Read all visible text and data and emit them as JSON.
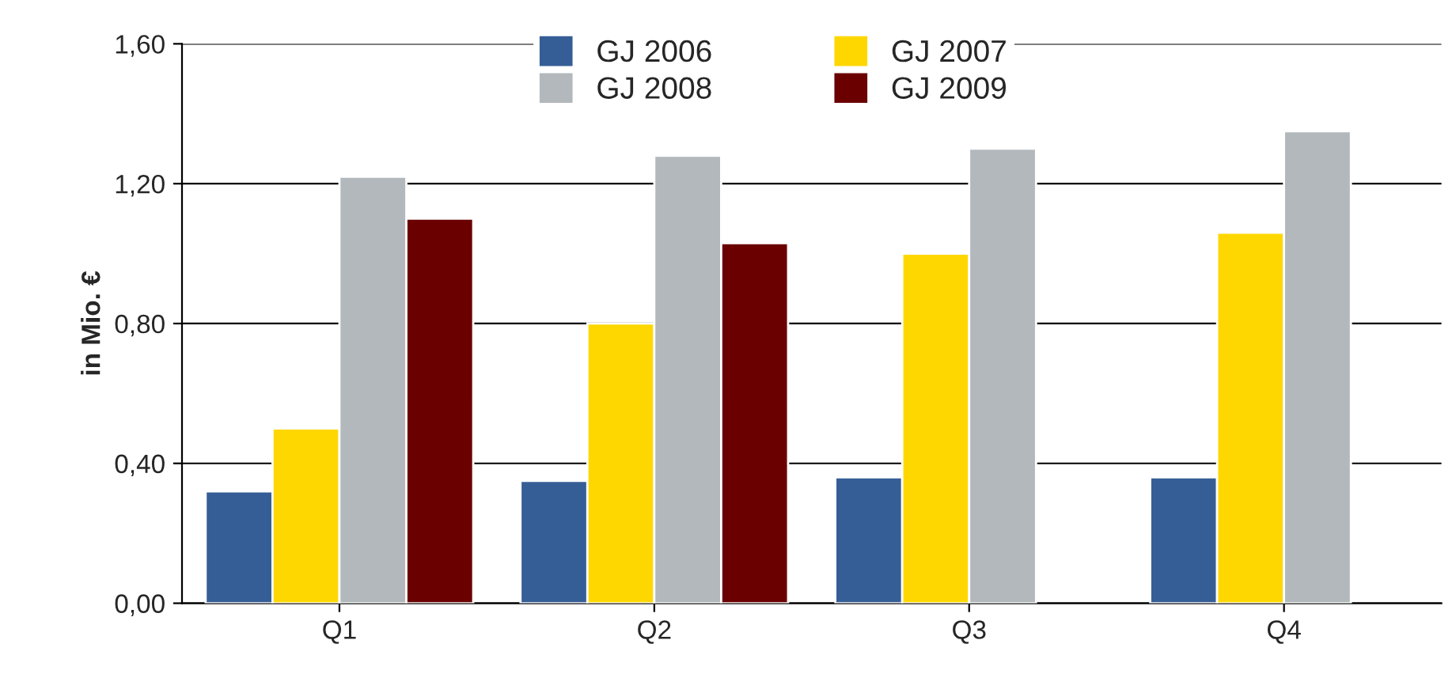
{
  "chart_data": {
    "type": "bar",
    "ylabel": "in Mio. €",
    "categories": [
      "Q1",
      "Q2",
      "Q3",
      "Q4"
    ],
    "series": [
      {
        "name": "GJ 2006",
        "color": "#365e96",
        "values": [
          0.32,
          0.35,
          0.36,
          0.36
        ]
      },
      {
        "name": "GJ 2007",
        "color": "#ffd700",
        "values": [
          0.5,
          0.8,
          1.0,
          1.06
        ]
      },
      {
        "name": "GJ 2008",
        "color": "#b2b8bb",
        "values": [
          1.22,
          1.28,
          1.3,
          1.35
        ]
      },
      {
        "name": "GJ 2009",
        "color": "#6b0000",
        "values": [
          1.1,
          1.03,
          null,
          null
        ]
      }
    ],
    "ylim": [
      0,
      1.6
    ],
    "yticks": [
      {
        "value": 0,
        "label": "0,00"
      },
      {
        "value": 0.4,
        "label": "0,40"
      },
      {
        "value": 0.8,
        "label": "0,80"
      },
      {
        "value": 1.2,
        "label": "1,20"
      },
      {
        "value": 1.6,
        "label": "1,60"
      }
    ],
    "grid": "y",
    "legend": "top"
  }
}
